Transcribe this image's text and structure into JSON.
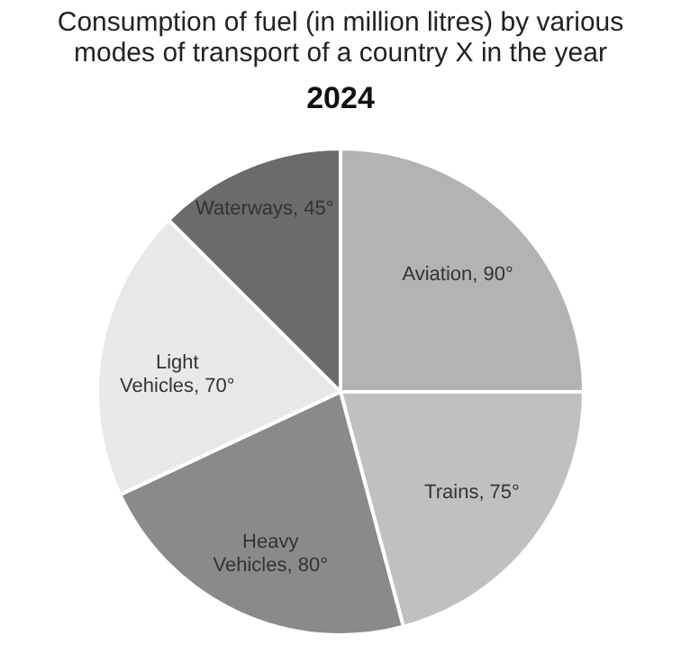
{
  "chart_data": {
    "type": "pie",
    "title": "Consumption of fuel (in million litres) by various modes of transport of a country X in the year",
    "subtitle": "2024",
    "categories": [
      "Aviation",
      "Trains",
      "Heavy Vehicles",
      "Light Vehicles",
      "Waterways"
    ],
    "values": [
      90,
      75,
      80,
      70,
      45
    ],
    "value_labels": [
      "90°",
      "75°",
      "80°",
      "70°",
      "45°"
    ],
    "colors": [
      "#b3b3b3",
      "#c0c0c0",
      "#8a8a8a",
      "#e8e8e8",
      "#6b6b6b"
    ],
    "legend": false
  }
}
